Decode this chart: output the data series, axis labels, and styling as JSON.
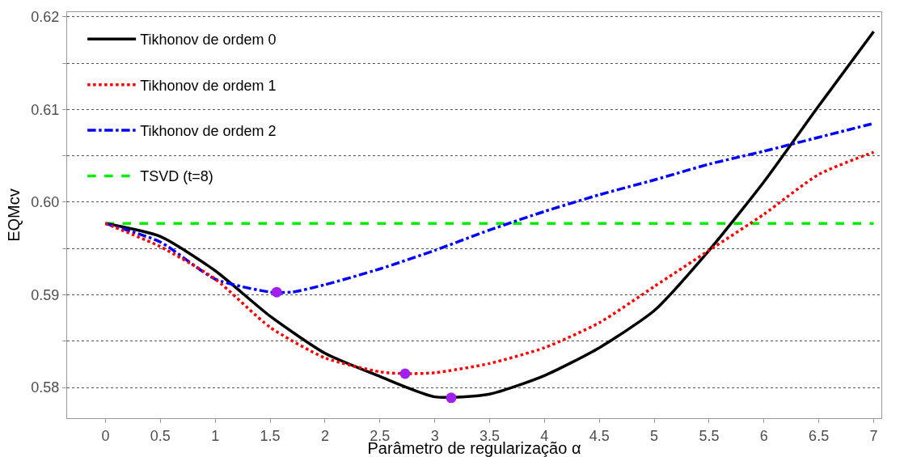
{
  "chart_data": {
    "type": "line",
    "xlabel": "Parâmetro de regularização α",
    "ylabel": "EQMcv",
    "xlim": [
      -0.35,
      7.07
    ],
    "xticks": [
      0,
      0.5,
      1,
      1.5,
      2,
      2.5,
      3,
      3.5,
      4,
      4.5,
      5,
      5.5,
      6,
      6.5,
      7
    ],
    "ylim": [
      0.5767,
      0.6205
    ],
    "yticks": [
      0.58,
      {
        "value": 0.585,
        "label": null
      },
      0.59,
      {
        "value": 0.595,
        "label": null
      },
      {
        "value": 0.6,
        "label": "0.60"
      },
      {
        "value": 0.605,
        "label": null
      },
      0.61,
      {
        "value": 0.615,
        "label": null
      },
      0.62
    ],
    "grid": "y",
    "legend": "top left",
    "marker": "none",
    "series": [
      {
        "name": "Tikhonov de ordem 0",
        "color": "#000000",
        "line_style": "solid",
        "x": [
          0,
          0.5,
          1,
          1.5,
          2,
          2.5,
          3,
          3.5,
          4,
          4.5,
          5,
          5.5,
          6,
          6.5,
          7
        ],
        "values": [
          0.5977,
          0.5963,
          0.5926,
          0.5877,
          0.5837,
          0.5812,
          0.579,
          0.5793,
          0.5813,
          0.5843,
          0.5883,
          0.5948,
          0.6022,
          0.6104,
          0.6184
        ]
      },
      {
        "name": "Tikhonov de ordem 1",
        "color": "#ff0000",
        "line_style": "dotted",
        "x": [
          0,
          0.5,
          1,
          1.5,
          2,
          2.5,
          2.73,
          3,
          3.5,
          4,
          4.5,
          5,
          5.5,
          6,
          6.5,
          7
        ],
        "values": [
          0.5977,
          0.5952,
          0.5917,
          0.5865,
          0.5832,
          0.5817,
          0.5815,
          0.5816,
          0.5826,
          0.5843,
          0.587,
          0.5909,
          0.5948,
          0.5987,
          0.603,
          0.6054
        ]
      },
      {
        "name": "Tikhonov de ordem 2",
        "color": "#0000ff",
        "line_style": "dashdot",
        "x": [
          0,
          0.5,
          1,
          1.5,
          1.7,
          2,
          2.5,
          3,
          3.5,
          4,
          4.5,
          5,
          5.5,
          6,
          6.5,
          7
        ],
        "values": [
          0.5977,
          0.5957,
          0.5917,
          0.5903,
          0.5903,
          0.5911,
          0.5928,
          0.5948,
          0.597,
          0.599,
          0.6008,
          0.6024,
          0.6041,
          0.6055,
          0.607,
          0.6085
        ]
      },
      {
        "name": "TSVD (t=8)",
        "color": "#00ee00",
        "line_style": "dashed",
        "x": [
          0,
          7
        ],
        "values": [
          0.5977,
          0.5977
        ]
      },
      {
        "type": "scatter",
        "marker": "circle",
        "color": "#a020f0",
        "x": [
          1.56,
          2.73,
          3.15
        ],
        "values": [
          0.5903,
          0.5815,
          0.5789
        ]
      }
    ]
  }
}
